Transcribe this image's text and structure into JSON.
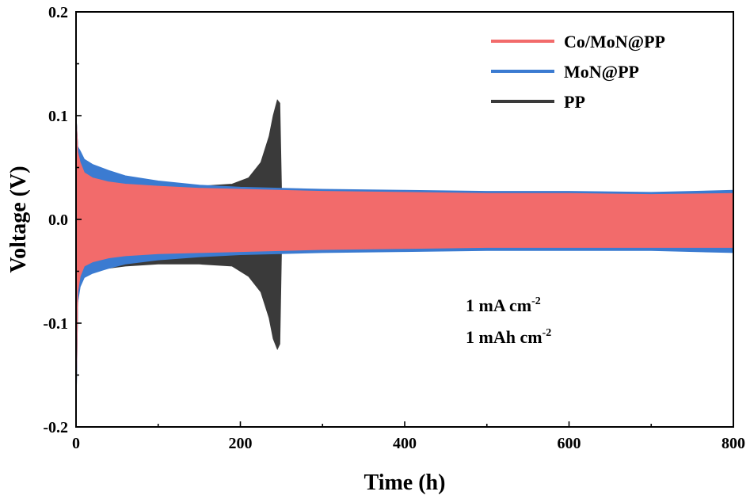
{
  "chart_data": {
    "type": "area",
    "xlabel": "Time (h)",
    "ylabel": "Voltage (V)",
    "xlim": [
      0,
      800
    ],
    "ylim": [
      -0.2,
      0.2
    ],
    "x_ticks": [
      "0",
      "200",
      "400",
      "600",
      "800"
    ],
    "y_ticks": [
      "-0.2",
      "-0.1",
      "0.0",
      "0.1",
      "0.2"
    ],
    "legend_position": "top-right",
    "grid": false,
    "series": [
      {
        "name": "PP",
        "color": "#3a3a3a",
        "x": [
          0,
          2,
          4,
          10,
          30,
          60,
          100,
          150,
          190,
          210,
          225,
          235,
          240,
          245,
          248,
          250
        ],
        "upper": [
          0.1,
          0.07,
          0.06,
          0.05,
          0.042,
          0.036,
          0.032,
          0.032,
          0.034,
          0.04,
          0.055,
          0.08,
          0.1,
          0.115,
          0.112,
          0.03
        ],
        "lower": [
          -0.185,
          -0.08,
          -0.065,
          -0.055,
          -0.048,
          -0.045,
          -0.043,
          -0.043,
          -0.045,
          -0.055,
          -0.07,
          -0.095,
          -0.115,
          -0.125,
          -0.12,
          -0.03
        ]
      },
      {
        "name": "MoN@PP",
        "color": "#3b7bd1",
        "x": [
          0,
          2,
          5,
          10,
          20,
          40,
          60,
          100,
          150,
          200,
          300,
          400,
          500,
          600,
          700,
          800
        ],
        "upper": [
          0.1,
          0.07,
          0.066,
          0.058,
          0.053,
          0.047,
          0.042,
          0.037,
          0.033,
          0.031,
          0.029,
          0.028,
          0.027,
          0.027,
          0.026,
          0.028
        ],
        "lower": [
          -0.185,
          -0.08,
          -0.065,
          -0.056,
          -0.052,
          -0.047,
          -0.043,
          -0.039,
          -0.036,
          -0.034,
          -0.032,
          -0.031,
          -0.03,
          -0.03,
          -0.03,
          -0.032
        ]
      },
      {
        "name": "Co/MoN@PP",
        "color": "#f26b6b",
        "x": [
          0,
          2,
          5,
          10,
          20,
          40,
          60,
          100,
          150,
          200,
          300,
          400,
          500,
          600,
          700,
          800
        ],
        "upper": [
          0.1,
          0.065,
          0.055,
          0.045,
          0.04,
          0.036,
          0.034,
          0.032,
          0.03,
          0.029,
          0.027,
          0.026,
          0.025,
          0.025,
          0.024,
          0.025
        ],
        "lower": [
          -0.175,
          -0.07,
          -0.055,
          -0.045,
          -0.041,
          -0.037,
          -0.035,
          -0.033,
          -0.032,
          -0.031,
          -0.029,
          -0.028,
          -0.027,
          -0.027,
          -0.027,
          -0.027
        ]
      }
    ],
    "legend_order": [
      "Co/MoN@PP",
      "MoN@PP",
      "PP"
    ],
    "annotations": [
      {
        "base": "1 mA cm",
        "sup": "-2"
      },
      {
        "base": "1 mAh cm",
        "sup": "-2"
      }
    ]
  }
}
